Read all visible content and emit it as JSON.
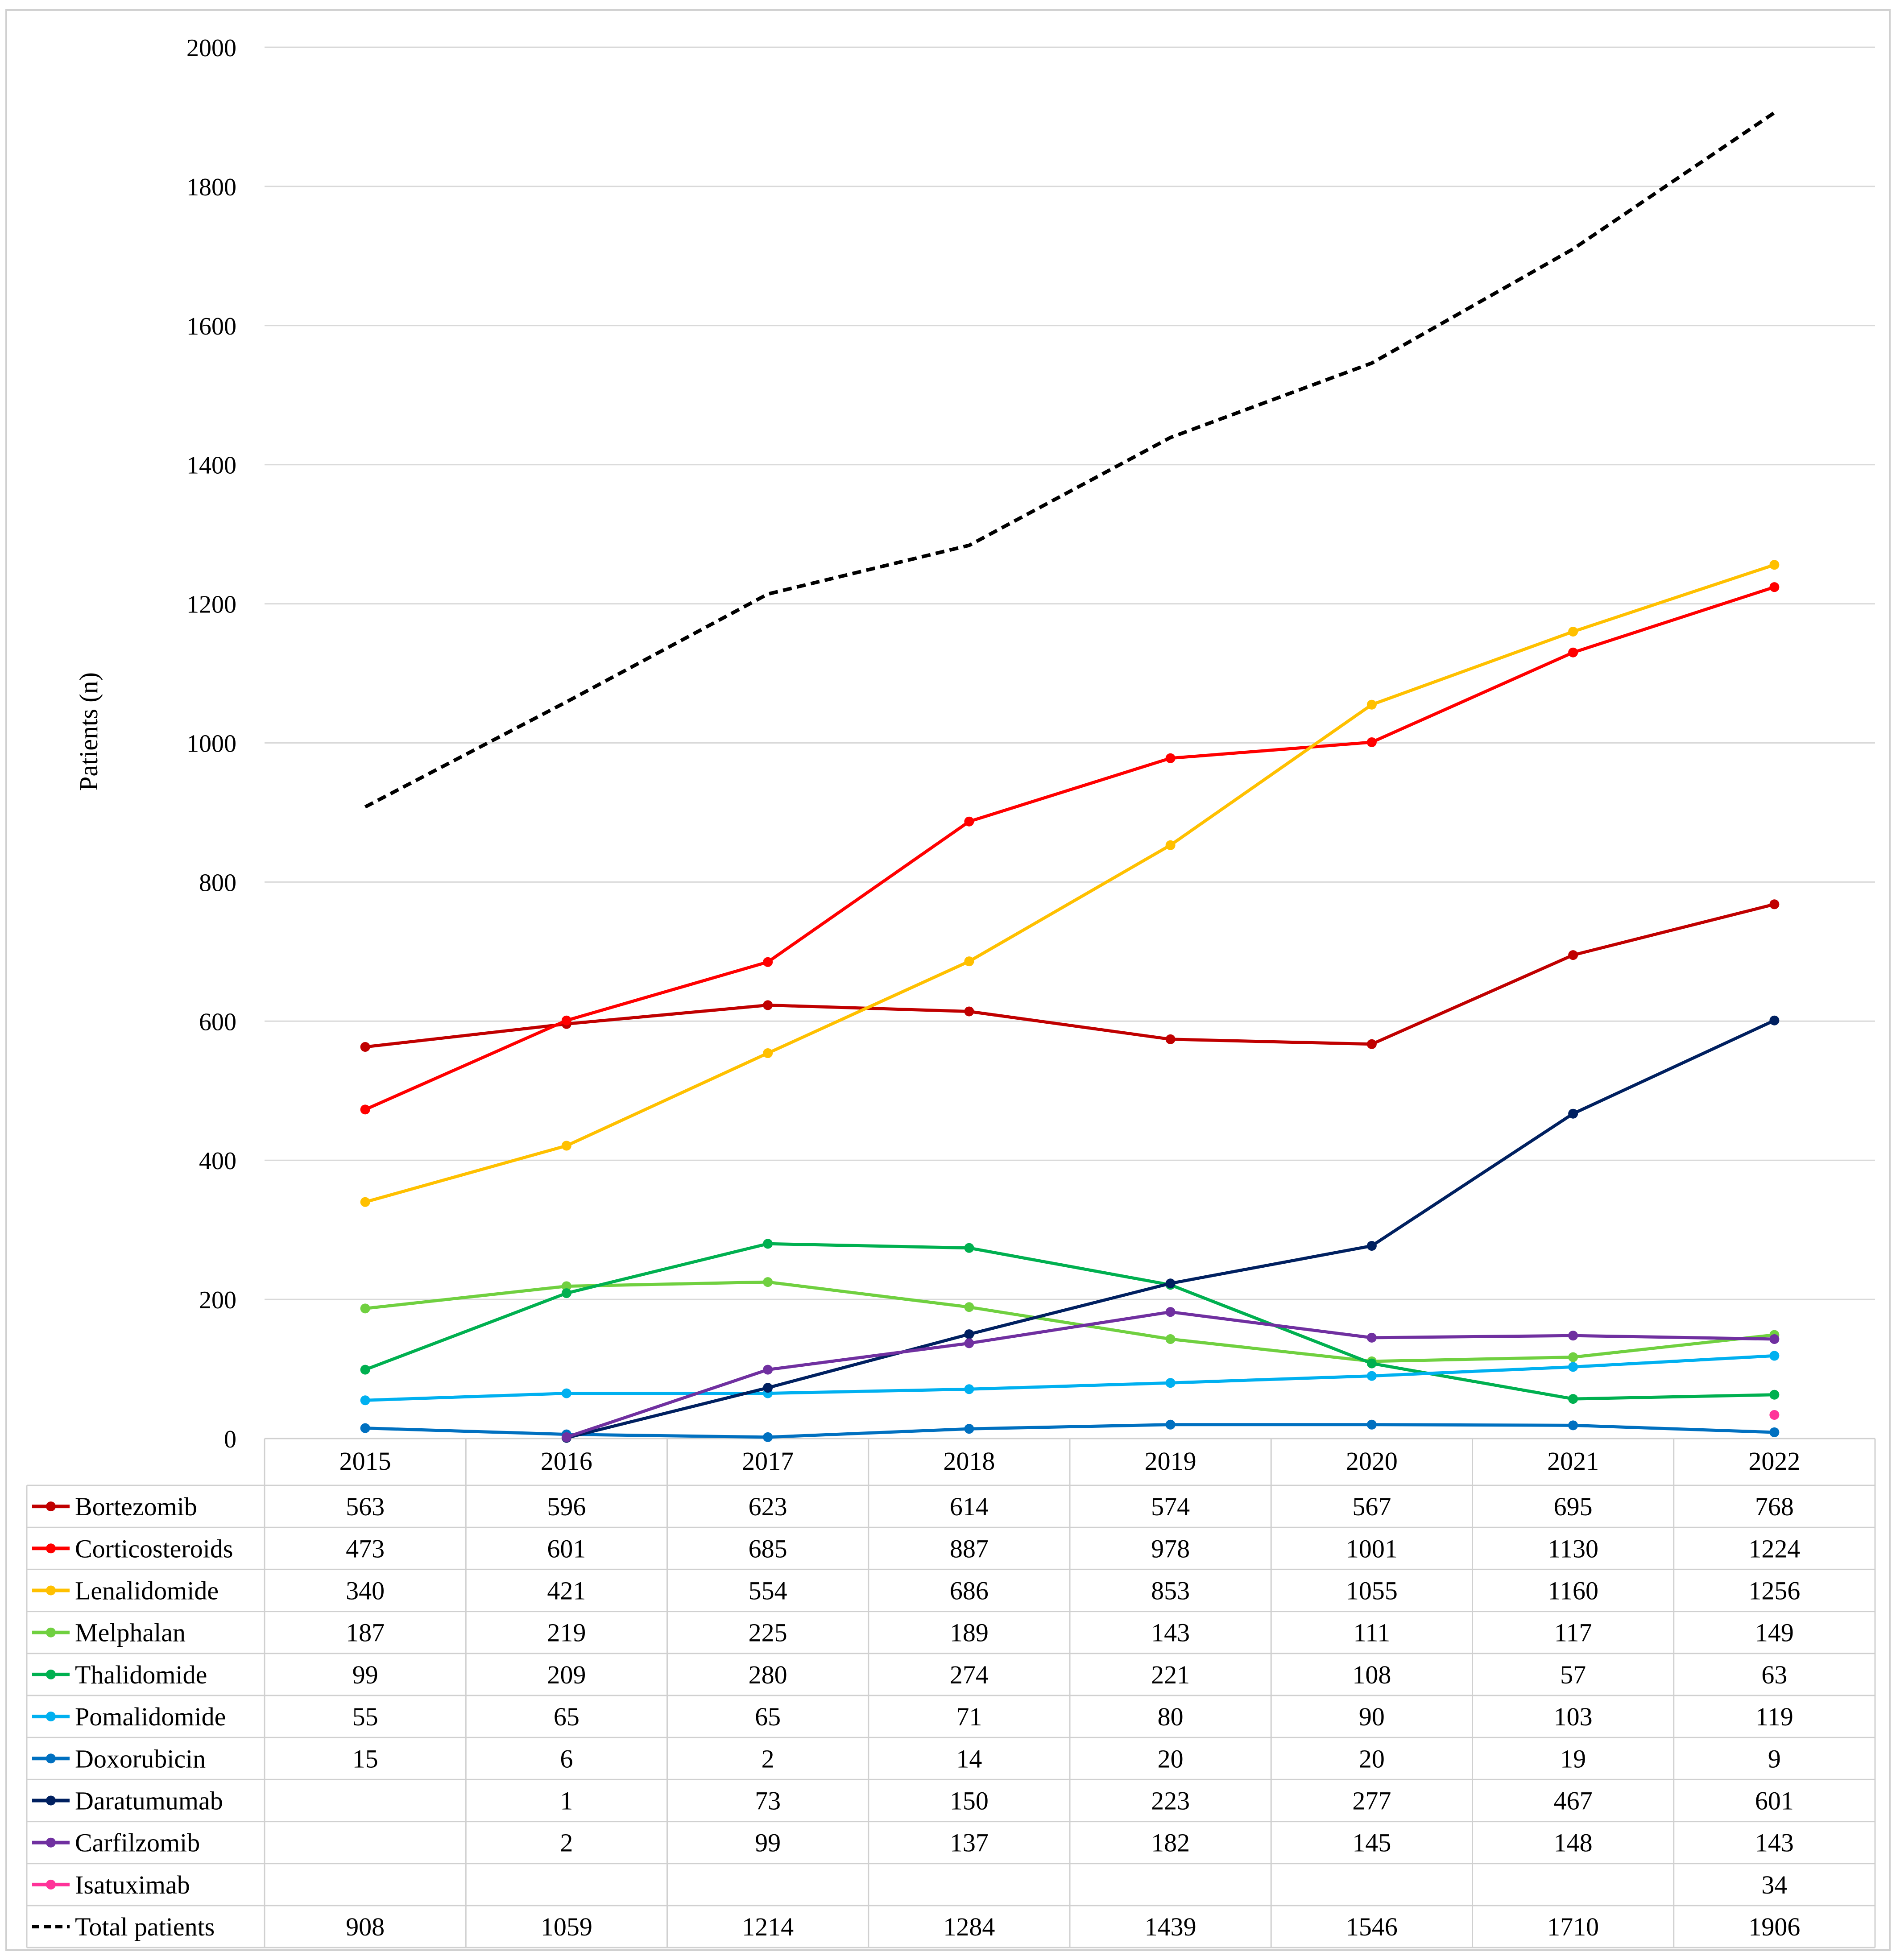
{
  "chart_data": {
    "type": "line",
    "title": "",
    "xlabel": "",
    "ylabel": "Patients (n)",
    "ylim": [
      0,
      2000
    ],
    "yticks": [
      0,
      200,
      400,
      600,
      800,
      1000,
      1200,
      1400,
      1600,
      1800,
      2000
    ],
    "categories": [
      "2015",
      "2016",
      "2017",
      "2018",
      "2019",
      "2020",
      "2021",
      "2022"
    ],
    "grid": true,
    "legend": "data-table-below",
    "series": [
      {
        "name": "Bortezomib",
        "color": "#C00000",
        "dash": false,
        "values": [
          563,
          596,
          623,
          614,
          574,
          567,
          695,
          768
        ]
      },
      {
        "name": "Corticosteroids",
        "color": "#FF0000",
        "dash": false,
        "values": [
          473,
          601,
          685,
          887,
          978,
          1001,
          1130,
          1224
        ]
      },
      {
        "name": "Lenalidomide",
        "color": "#FFC000",
        "dash": false,
        "values": [
          340,
          421,
          554,
          686,
          853,
          1055,
          1160,
          1256
        ]
      },
      {
        "name": "Melphalan",
        "color": "#70D040",
        "dash": false,
        "values": [
          187,
          219,
          225,
          189,
          143,
          111,
          117,
          149
        ]
      },
      {
        "name": "Thalidomide",
        "color": "#00B050",
        "dash": false,
        "values": [
          99,
          209,
          280,
          274,
          221,
          108,
          57,
          63
        ]
      },
      {
        "name": "Pomalidomide",
        "color": "#00B0F0",
        "dash": false,
        "values": [
          55,
          65,
          65,
          71,
          80,
          90,
          103,
          119
        ]
      },
      {
        "name": "Doxorubicin",
        "color": "#0070C0",
        "dash": false,
        "values": [
          15,
          6,
          2,
          14,
          20,
          20,
          19,
          9
        ]
      },
      {
        "name": "Daratumumab",
        "color": "#002060",
        "dash": false,
        "values": [
          null,
          1,
          73,
          150,
          223,
          277,
          467,
          601
        ]
      },
      {
        "name": "Carfilzomib",
        "color": "#7030A0",
        "dash": false,
        "values": [
          null,
          2,
          99,
          137,
          182,
          145,
          148,
          143
        ]
      },
      {
        "name": "Isatuximab",
        "color": "#FF3399",
        "dash": false,
        "values": [
          null,
          null,
          null,
          null,
          null,
          null,
          null,
          34
        ]
      },
      {
        "name": "Total patients",
        "color": "#000000",
        "dash": true,
        "values": [
          908,
          1059,
          1214,
          1284,
          1439,
          1546,
          1710,
          1906
        ]
      }
    ]
  }
}
